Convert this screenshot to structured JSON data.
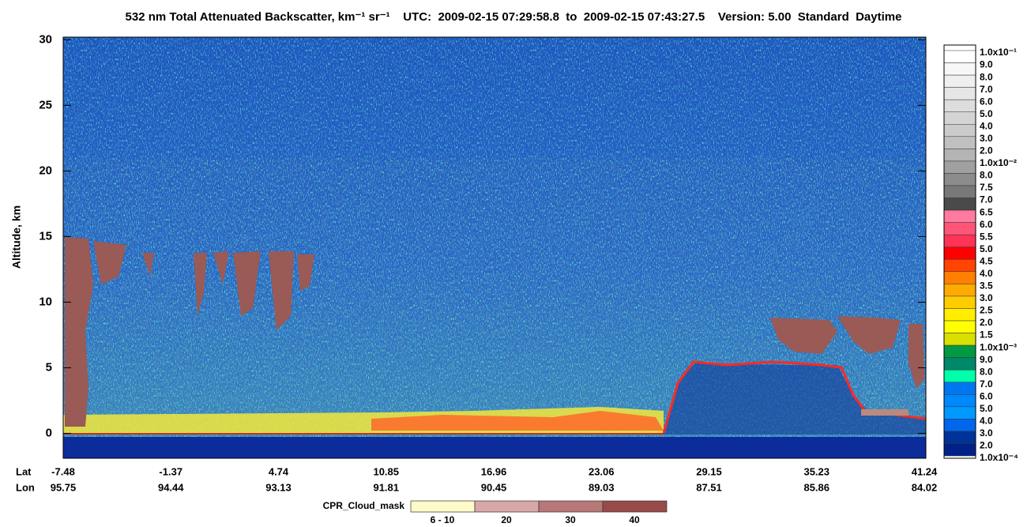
{
  "chart_data": {
    "type": "curtain",
    "title": "532 nm Total Attenuated Backscatter, km⁻¹ sr⁻¹    UTC:  2009-02-15 07:29:58.8  to  2009-02-15 07:43:27.5    Version: 5.00  Standard  Daytime",
    "ylabel": "Altitude, km",
    "ylim": [
      -1.9,
      30.2
    ],
    "yticks": [
      0,
      5,
      10,
      15,
      20,
      25,
      30
    ],
    "x_rows": [
      {
        "name": "Lat",
        "labels": [
          "-7.48",
          "-1.37",
          "4.74",
          "10.85",
          "16.96",
          "23.06",
          "29.15",
          "35.23",
          "41.24"
        ]
      },
      {
        "name": "Lon",
        "labels": [
          "95.75",
          "94.44",
          "93.13",
          "91.81",
          "90.45",
          "89.03",
          "87.51",
          "85.86",
          "84.02"
        ]
      }
    ],
    "colorbar": {
      "labels": [
        "1.0x10⁻¹",
        "9.0",
        "8.0",
        "7.0",
        "6.0",
        "5.0",
        "4.0",
        "3.0",
        "2.0",
        "1.0x10⁻²",
        "8.0",
        "7.5",
        "7.0",
        "6.5",
        "6.0",
        "5.5",
        "5.0",
        "4.5",
        "4.0",
        "3.5",
        "3.0",
        "2.5",
        "2.0",
        "1.5",
        "1.0x10⁻³",
        "9.0",
        "8.0",
        "7.0",
        "6.0",
        "5.0",
        "4.0",
        "3.0",
        "2.0",
        "1.0x10⁻⁴"
      ],
      "colors": [
        "#ffffff",
        "#f7f7f7",
        "#efefef",
        "#e6e6e6",
        "#dddddd",
        "#d4d4d4",
        "#cbcbcb",
        "#c0c0c0",
        "#b4b4b4",
        "#a0a0a0",
        "#8c8c8c",
        "#787878",
        "#4a4a4a",
        "#ff7aa0",
        "#ff5577",
        "#ff3355",
        "#ff0000",
        "#ff4500",
        "#ff7f00",
        "#ffaa00",
        "#ffcc00",
        "#ffee00",
        "#ffff00",
        "#d8e000",
        "#009944",
        "#00886a",
        "#00ffaa",
        "#0077ee",
        "#0088ff",
        "#0099ff",
        "#0066ee",
        "#003399",
        "#002288"
      ]
    },
    "cloud_mask": {
      "title": "CPR_Cloud_mask",
      "labels": [
        "6 - 10",
        "20",
        "30",
        "40"
      ],
      "colors": [
        "#fffbc8",
        "#d8a8a8",
        "#b87878",
        "#9a4a48"
      ]
    }
  }
}
